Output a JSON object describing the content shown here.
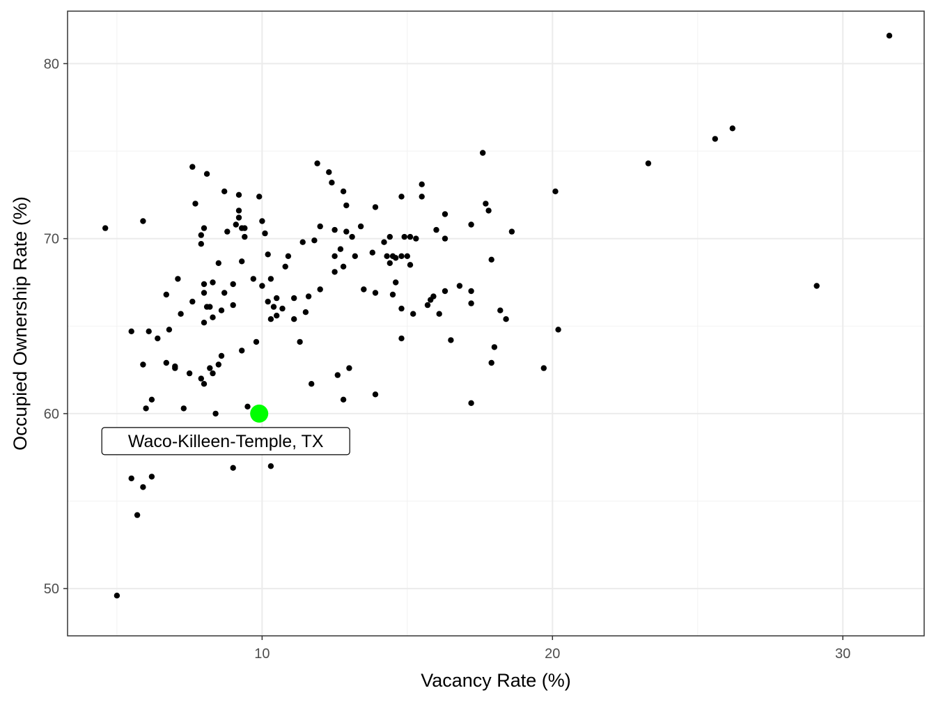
{
  "chart_data": {
    "type": "scatter",
    "title": "",
    "xlabel": "Vacancy Rate (%)",
    "ylabel": "Occupied Ownership Rate (%)",
    "xlim": [
      3.3,
      32.8
    ],
    "ylim": [
      47.3,
      83.0
    ],
    "x_ticks": [
      10,
      20,
      30
    ],
    "y_ticks": [
      50,
      60,
      70,
      80
    ],
    "grid": true,
    "colors": {
      "points": "#000000",
      "highlight": "#00ff00",
      "grid": "#ebebeb",
      "panel_border": "#333333"
    },
    "highlight": {
      "label": "Waco-Killeen-Temple, TX",
      "x": 9.9,
      "y": 60.0
    },
    "points": [
      [
        4.6,
        70.6
      ],
      [
        5.0,
        49.6
      ],
      [
        5.5,
        64.7
      ],
      [
        5.5,
        56.3
      ],
      [
        5.7,
        54.2
      ],
      [
        5.9,
        71.0
      ],
      [
        5.9,
        62.8
      ],
      [
        5.9,
        55.8
      ],
      [
        6.0,
        60.3
      ],
      [
        6.1,
        64.7
      ],
      [
        6.2,
        60.8
      ],
      [
        6.2,
        56.4
      ],
      [
        6.4,
        64.3
      ],
      [
        6.7,
        62.9
      ],
      [
        6.7,
        66.8
      ],
      [
        6.8,
        64.8
      ],
      [
        7.0,
        62.6
      ],
      [
        7.0,
        62.7
      ],
      [
        7.1,
        67.7
      ],
      [
        7.2,
        65.7
      ],
      [
        7.3,
        60.3
      ],
      [
        7.5,
        62.3
      ],
      [
        7.6,
        74.1
      ],
      [
        7.6,
        66.4
      ],
      [
        7.7,
        72.0
      ],
      [
        7.9,
        62.0
      ],
      [
        7.9,
        69.7
      ],
      [
        7.9,
        70.2
      ],
      [
        8.0,
        70.6
      ],
      [
        8.0,
        67.4
      ],
      [
        8.0,
        66.9
      ],
      [
        8.0,
        65.2
      ],
      [
        8.0,
        61.7
      ],
      [
        8.1,
        73.7
      ],
      [
        8.1,
        66.1
      ],
      [
        8.2,
        66.1
      ],
      [
        8.2,
        62.6
      ],
      [
        8.3,
        65.5
      ],
      [
        8.3,
        62.3
      ],
      [
        8.3,
        67.5
      ],
      [
        8.4,
        60.0
      ],
      [
        8.5,
        68.6
      ],
      [
        8.5,
        62.8
      ],
      [
        8.6,
        65.9
      ],
      [
        8.6,
        63.3
      ],
      [
        8.7,
        66.9
      ],
      [
        8.7,
        72.7
      ],
      [
        8.8,
        70.4
      ],
      [
        9.0,
        67.4
      ],
      [
        9.0,
        66.2
      ],
      [
        9.0,
        56.9
      ],
      [
        9.1,
        70.8
      ],
      [
        9.2,
        71.6
      ],
      [
        9.2,
        72.5
      ],
      [
        9.2,
        71.2
      ],
      [
        9.3,
        70.6
      ],
      [
        9.3,
        68.7
      ],
      [
        9.3,
        63.6
      ],
      [
        9.4,
        70.6
      ],
      [
        9.4,
        70.1
      ],
      [
        9.5,
        60.4
      ],
      [
        9.7,
        67.7
      ],
      [
        9.8,
        64.1
      ],
      [
        9.9,
        72.4
      ],
      [
        10.0,
        67.3
      ],
      [
        10.0,
        71.0
      ],
      [
        10.1,
        70.3
      ],
      [
        10.2,
        69.1
      ],
      [
        10.2,
        66.4
      ],
      [
        10.3,
        67.7
      ],
      [
        10.3,
        65.4
      ],
      [
        10.3,
        57.0
      ],
      [
        10.4,
        66.1
      ],
      [
        10.5,
        66.6
      ],
      [
        10.5,
        65.6
      ],
      [
        10.7,
        66.0
      ],
      [
        10.8,
        68.4
      ],
      [
        10.9,
        69.0
      ],
      [
        11.1,
        66.6
      ],
      [
        11.1,
        65.4
      ],
      [
        11.3,
        64.1
      ],
      [
        11.4,
        69.8
      ],
      [
        11.5,
        65.8
      ],
      [
        11.6,
        66.7
      ],
      [
        11.7,
        61.7
      ],
      [
        11.8,
        69.9
      ],
      [
        11.9,
        74.3
      ],
      [
        12.0,
        67.1
      ],
      [
        12.0,
        70.7
      ],
      [
        12.3,
        73.8
      ],
      [
        12.4,
        73.2
      ],
      [
        12.5,
        69.0
      ],
      [
        12.5,
        70.5
      ],
      [
        12.5,
        68.1
      ],
      [
        12.6,
        62.2
      ],
      [
        12.7,
        69.4
      ],
      [
        12.8,
        68.4
      ],
      [
        12.8,
        72.7
      ],
      [
        12.8,
        60.8
      ],
      [
        12.9,
        70.4
      ],
      [
        12.9,
        71.9
      ],
      [
        13.0,
        62.6
      ],
      [
        13.1,
        70.1
      ],
      [
        13.2,
        69.0
      ],
      [
        13.4,
        70.7
      ],
      [
        13.5,
        67.1
      ],
      [
        13.8,
        69.2
      ],
      [
        13.9,
        66.9
      ],
      [
        13.9,
        71.8
      ],
      [
        13.9,
        61.1
      ],
      [
        14.2,
        69.8
      ],
      [
        14.3,
        69.0
      ],
      [
        14.4,
        70.1
      ],
      [
        14.4,
        68.6
      ],
      [
        14.5,
        69.0
      ],
      [
        14.5,
        66.8
      ],
      [
        14.6,
        67.5
      ],
      [
        14.6,
        68.9
      ],
      [
        14.8,
        66.0
      ],
      [
        14.8,
        72.4
      ],
      [
        14.8,
        64.3
      ],
      [
        14.8,
        69.0
      ],
      [
        14.9,
        70.1
      ],
      [
        15.0,
        69.0
      ],
      [
        15.1,
        70.1
      ],
      [
        15.1,
        68.5
      ],
      [
        15.2,
        65.7
      ],
      [
        15.3,
        70.0
      ],
      [
        15.5,
        73.1
      ],
      [
        15.5,
        72.4
      ],
      [
        15.7,
        66.2
      ],
      [
        15.8,
        66.5
      ],
      [
        15.9,
        66.7
      ],
      [
        16.0,
        70.5
      ],
      [
        16.1,
        65.7
      ],
      [
        16.3,
        71.4
      ],
      [
        16.3,
        70.0
      ],
      [
        16.3,
        67.0
      ],
      [
        16.5,
        64.2
      ],
      [
        16.8,
        67.3
      ],
      [
        17.2,
        70.8
      ],
      [
        17.6,
        74.9
      ],
      [
        17.9,
        68.8
      ],
      [
        17.9,
        62.9
      ],
      [
        18.0,
        63.8
      ],
      [
        17.2,
        67.0
      ],
      [
        17.2,
        66.3
      ],
      [
        17.2,
        60.6
      ],
      [
        17.7,
        72.0
      ],
      [
        17.8,
        71.6
      ],
      [
        18.2,
        65.9
      ],
      [
        18.4,
        65.4
      ],
      [
        18.6,
        70.4
      ],
      [
        19.7,
        62.6
      ],
      [
        20.1,
        72.7
      ],
      [
        20.2,
        64.8
      ],
      [
        23.3,
        74.3
      ],
      [
        25.6,
        75.7
      ],
      [
        26.2,
        76.3
      ],
      [
        29.1,
        67.3
      ],
      [
        31.6,
        81.6
      ]
    ]
  }
}
